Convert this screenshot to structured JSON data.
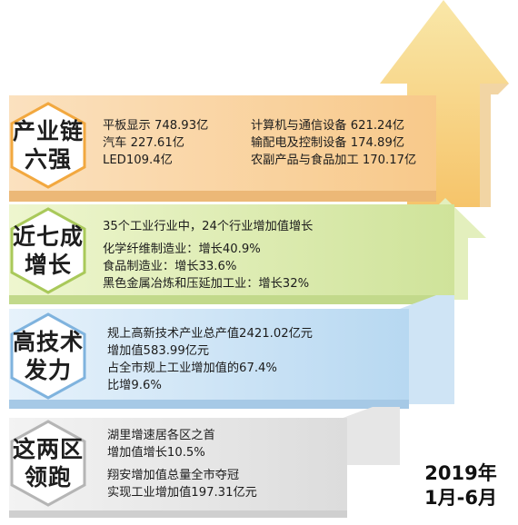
{
  "sections": [
    {
      "title_line1": "产业链",
      "title_line2": "六强",
      "left_lines": [
        "平板显示 748.93亿",
        "汽车 227.61亿",
        "LED109.4亿"
      ],
      "right_lines": [
        "计算机与通信设备 621.24亿",
        "输配电及控制设备 174.89亿",
        "农副产品与食品加工 170.17亿"
      ]
    },
    {
      "title_line1": "近七成",
      "title_line2": "增长",
      "lines": [
        "35个工业行业中，24个行业增加值增长",
        "化学纤维制造业：增长40.9%",
        "食品制造业：增长33.6%",
        "黑色金属冶炼和压延加工业：增长32%"
      ]
    },
    {
      "title_line1": "高技术",
      "title_line2": "发力",
      "lines": [
        "规上高新技术产业总产值2421.02亿元",
        "增加值583.99亿元",
        "占全市规上工业增加值的67.4%",
        "比增9.6%"
      ]
    },
    {
      "title_line1": "这两区",
      "title_line2": "领跑",
      "lines": [
        "湖里增速居各区之首",
        "增加值增长10.5%",
        "翔安增加值总量全市夺冠",
        "实现工业增加值197.31亿元"
      ]
    }
  ],
  "date": {
    "line1": "2019年",
    "line2": "1月-6月"
  }
}
